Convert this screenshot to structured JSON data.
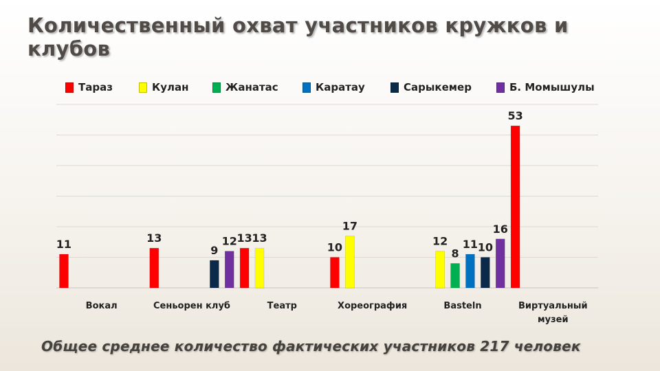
{
  "slide": {
    "title": "Количественный охват участников кружков и клубов",
    "footer": "Общее среднее количество фактических участников 217 человек"
  },
  "chart_data": {
    "type": "bar",
    "title": "",
    "xlabel": "",
    "ylabel": "",
    "ylim": [
      0,
      60
    ],
    "grid": true,
    "legend_position": "top",
    "categories": [
      "Вокал",
      "Сеньорен клуб",
      "Театр",
      "Хореография",
      "Basteln",
      "Виртуальный музей"
    ],
    "series": [
      {
        "name": "Тараз",
        "color": "#ff0000",
        "values": [
          11,
          13,
          13,
          10,
          null,
          53
        ]
      },
      {
        "name": "Кулан",
        "color": "#ffff00",
        "values": [
          null,
          null,
          13,
          17,
          12,
          null
        ]
      },
      {
        "name": "Жанатас",
        "color": "#00b050",
        "values": [
          null,
          null,
          null,
          null,
          8,
          null
        ]
      },
      {
        "name": "Каратау",
        "color": "#0070c0",
        "values": [
          null,
          null,
          null,
          null,
          11,
          null
        ]
      },
      {
        "name": "Сарыкемер",
        "color": "#0b2a4a",
        "values": [
          null,
          9,
          null,
          null,
          10,
          null
        ]
      },
      {
        "name": "Б. Момышулы",
        "color": "#7030a0",
        "values": [
          null,
          12,
          null,
          null,
          16,
          null
        ]
      }
    ]
  }
}
